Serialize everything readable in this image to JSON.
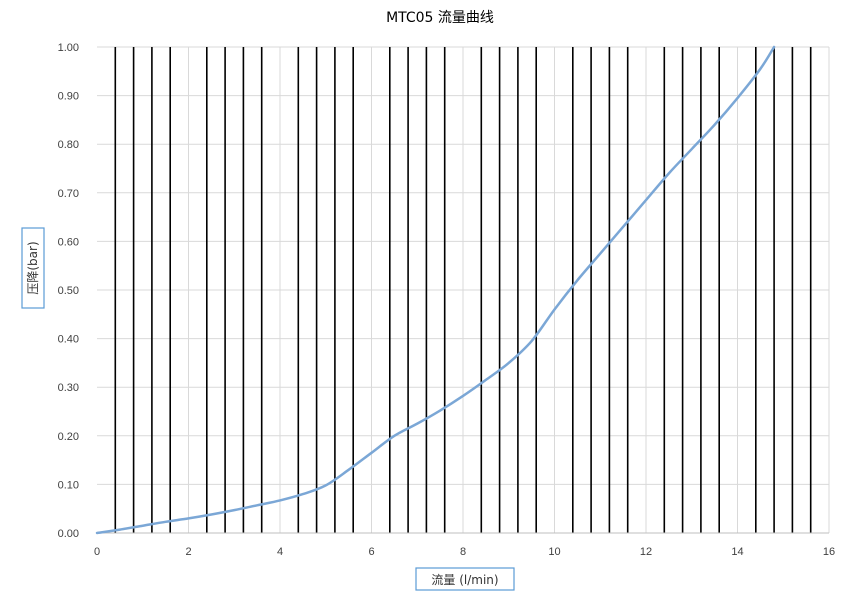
{
  "chart_data": {
    "type": "line",
    "title": "MTC05  流量曲线",
    "xlabel": "流量 (l/min)",
    "ylabel": "压降(bar)",
    "xlim": [
      0,
      16
    ],
    "ylim": [
      0,
      1.0
    ],
    "x_ticks": [
      0,
      2,
      4,
      6,
      8,
      10,
      12,
      14,
      16
    ],
    "x_tick_labels": [
      "0",
      "2",
      "4",
      "6",
      "8",
      "10",
      "12",
      "14",
      "16"
    ],
    "y_ticks": [
      0,
      0.1,
      0.2,
      0.3,
      0.4,
      0.5,
      0.6,
      0.7,
      0.8,
      0.9,
      1.0
    ],
    "y_tick_labels": [
      "0.00",
      "0.10",
      "0.20",
      "0.30",
      "0.40",
      "0.50",
      "0.60",
      "0.70",
      "0.80",
      "0.90",
      "1.00"
    ],
    "minor_grid_step": 0.4,
    "minor_grid_color": "#d9d9d9",
    "dark_vertical_lines": [
      0.4,
      0.8,
      1.2,
      1.6,
      2.4,
      2.8,
      3.2,
      3.6,
      4.4,
      4.8,
      5.2,
      5.6,
      6.4,
      6.8,
      7.2,
      7.6,
      8.4,
      8.8,
      9.2,
      9.6,
      10.4,
      10.8,
      11.2,
      11.6,
      12.4,
      12.8,
      13.2,
      13.6,
      14.4,
      14.8,
      15.2,
      15.6
    ],
    "dark_line_color": "#000000",
    "grid": true,
    "legend": "none",
    "series": [
      {
        "color": "#7ba7d6",
        "x": [
          0,
          0.5,
          1,
          1.5,
          2,
          2.5,
          3,
          3.5,
          4,
          4.5,
          5,
          5.5,
          6,
          6.5,
          7,
          7.5,
          8,
          8.5,
          9,
          9.5,
          10,
          10.5,
          11,
          11.5,
          12,
          12.5,
          13,
          13.5,
          14,
          14.5,
          14.8
        ],
        "values": [
          0,
          0.007,
          0.015,
          0.023,
          0.03,
          0.038,
          0.047,
          0.057,
          0.067,
          0.08,
          0.098,
          0.13,
          0.165,
          0.2,
          0.225,
          0.252,
          0.282,
          0.315,
          0.35,
          0.395,
          0.46,
          0.52,
          0.575,
          0.63,
          0.685,
          0.74,
          0.79,
          0.84,
          0.895,
          0.955,
          1.0
        ]
      }
    ]
  }
}
